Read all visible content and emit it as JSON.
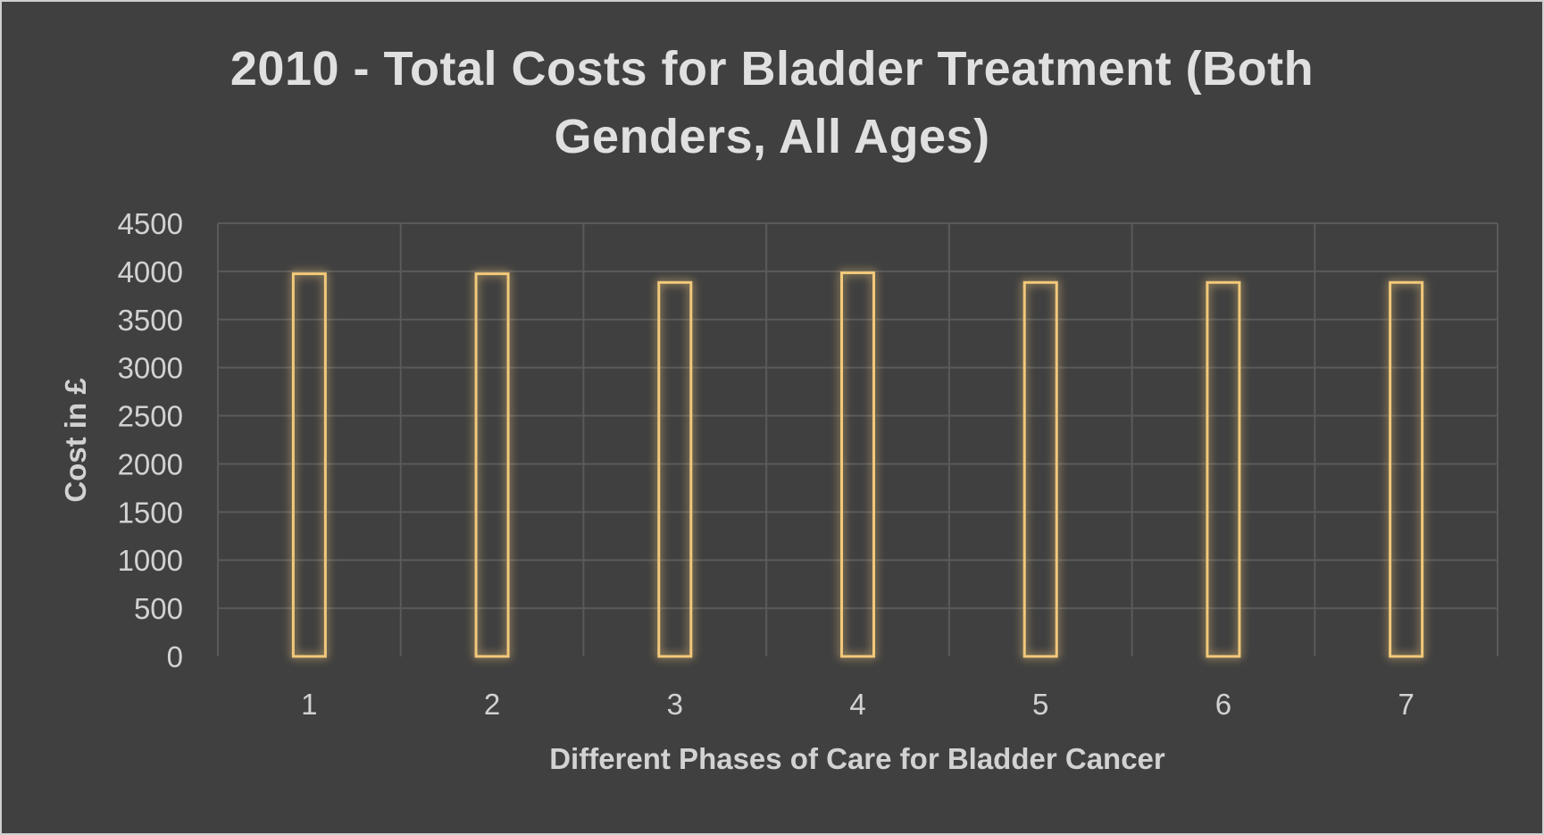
{
  "chart_data": {
    "type": "bar",
    "title_lines": [
      "2010 - Total Costs for Bladder Treatment (Both",
      "Genders, All Ages)"
    ],
    "xlabel": "Different Phases of Care for Bladder Cancer",
    "ylabel": "Cost in £",
    "categories": [
      "1",
      "2",
      "3",
      "4",
      "5",
      "6",
      "7"
    ],
    "values": [
      3975,
      3975,
      3885,
      3985,
      3885,
      3885,
      3885
    ],
    "ylim": [
      0,
      4500
    ],
    "yticks": [
      "0",
      "500",
      "1000",
      "1500",
      "2000",
      "2500",
      "3000",
      "3500",
      "4000",
      "4500"
    ],
    "grid": true,
    "legend": "none",
    "colors": {
      "background": "#404040",
      "bar_outline": "#f2c97a",
      "bar_glow": "#e8b44a",
      "grid": "#5a5a5a",
      "text": "#d2d2d2"
    }
  }
}
